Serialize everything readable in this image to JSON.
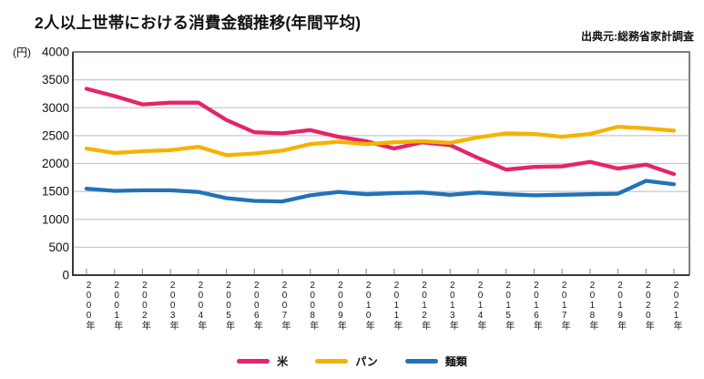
{
  "header": {
    "title": "2人以上世帯における消費金額推移(年間平均)",
    "source": "出典元:総務省家計調査"
  },
  "chart_data": {
    "type": "line",
    "title": "2人以上世帯における消費金額推移(年間平均)",
    "source": "出典元:総務省家計調査",
    "y_unit": "(円)",
    "ylim": [
      0,
      4000
    ],
    "ytick_step": 500,
    "y_ticks": [
      0,
      500,
      1000,
      1500,
      2000,
      2500,
      3000,
      3500,
      4000
    ],
    "grid": "horizontal-only",
    "legend_position": "bottom-center",
    "x_labels": [
      "2000年",
      "2001年",
      "2002年",
      "2003年",
      "2004年",
      "2005年",
      "2006年",
      "2007年",
      "2008年",
      "2009年",
      "2010年",
      "2011年",
      "2012年",
      "2013年",
      "2014年",
      "2015年",
      "2016年",
      "2017年",
      "2018年",
      "2019年",
      "2020年",
      "2021年"
    ],
    "series": [
      {
        "name": "米",
        "color": "#e4246d",
        "values": [
          3340,
          3210,
          3060,
          3090,
          3090,
          2780,
          2560,
          2540,
          2600,
          2480,
          2400,
          2270,
          2380,
          2330,
          2100,
          1890,
          1940,
          1950,
          2030,
          1910,
          1980,
          1810
        ]
      },
      {
        "name": "パン",
        "color": "#f5b301",
        "values": [
          2270,
          2190,
          2220,
          2240,
          2300,
          2150,
          2180,
          2230,
          2350,
          2390,
          2350,
          2380,
          2400,
          2370,
          2470,
          2540,
          2530,
          2480,
          2530,
          2660,
          2630,
          2590
        ]
      },
      {
        "name": "麺類",
        "color": "#2173b8",
        "values": [
          1550,
          1510,
          1520,
          1520,
          1490,
          1380,
          1330,
          1320,
          1430,
          1490,
          1450,
          1470,
          1480,
          1440,
          1480,
          1450,
          1430,
          1440,
          1450,
          1460,
          1690,
          1630
        ]
      }
    ],
    "frame_colors": {
      "top_right": "#837d7a",
      "left_bottom": "#3c3836"
    },
    "gridline_color": "#c9c9c9",
    "tick_color": "#9a9a9a"
  }
}
